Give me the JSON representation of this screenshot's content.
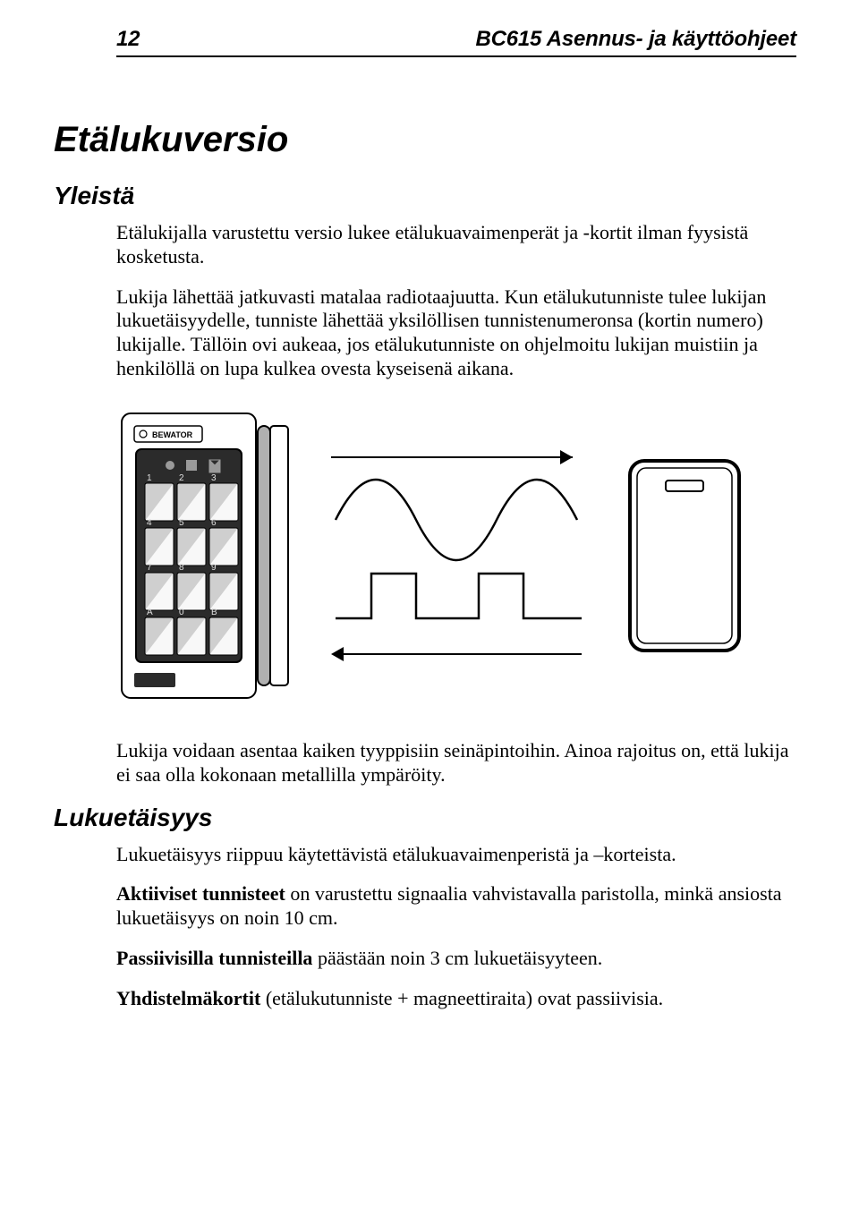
{
  "header": {
    "page_number": "12",
    "doc_title": "BC615 Asennus- ja käyttöohjeet"
  },
  "h1": "Etälukuversio",
  "section1": {
    "heading": "Yleistä",
    "p1": "Etälukijalla varustettu versio lukee etälukuavaimenperät ja -kortit ilman fyysistä kosketusta.",
    "p2": "Lukija lähettää jatkuvasti matalaa radiotaajuutta. Kun etälukutunniste tulee lukijan lukuetäisyydelle, tunniste lähettää yksilöllisen tunnistenumeronsa (kortin numero) lukijalle. Tällöin ovi aukeaa, jos etälukutunniste on ohjelmoitu lukijan muistiin ja henkilöllä on lupa kulkea ovesta kyseisenä aikana.",
    "p3": "Lukija voidaan asentaa kaiken tyyppisiin seinäpintoihin. Ainoa rajoitus on, että lukija ei saa olla kokonaan metallilla ympäröity."
  },
  "section2": {
    "heading": "Lukuetäisyys",
    "p1": "Lukuetäisyys riippuu käytettävistä etälukuavaimenperistä ja –korteista.",
    "p2_lead": "Aktiiviset tunnisteet",
    "p2_rest": " on varustettu signaalia vahvistavalla paristolla, minkä ansiosta lukuetäisyys on noin 10 cm.",
    "p3_lead": "Passiivisilla tunnisteilla",
    "p3_rest": " päästään noin 3 cm lukuetäisyyteen.",
    "p4_lead": "Yhdistelmäkortit",
    "p4_rest": " (etälukutunniste + magneettiraita) ovat passiivisia."
  },
  "figure": {
    "device_label": "BEWATOR",
    "keys": [
      "1",
      "2",
      "3",
      "4",
      "5",
      "6",
      "7",
      "8",
      "9",
      "A",
      "0",
      "B"
    ],
    "colors": {
      "stroke": "#000000",
      "panel_fill": "#888888",
      "panel_fill_dark": "#2b2b2b",
      "key_fill": "#cfcfcf",
      "key_shadow": "#8a8a8a",
      "body_fill": "#ffffff",
      "led_fill": "#9a9a9a"
    },
    "stroke_width": 2
  }
}
